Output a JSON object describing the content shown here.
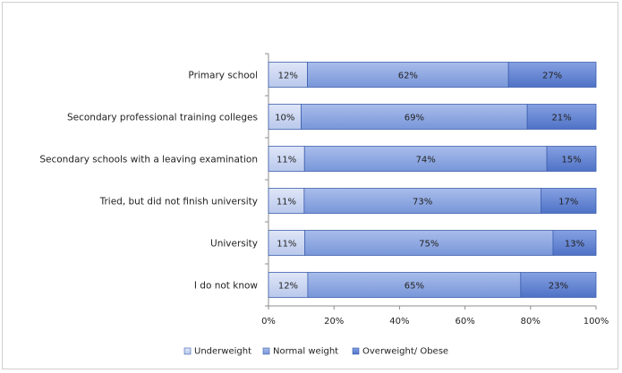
{
  "chart_data": {
    "type": "bar",
    "orientation": "horizontal",
    "stacked": true,
    "percent": true,
    "categories": [
      "Primary school",
      "Secondary professional training colleges",
      "Secondary schools with a leaving examination",
      "Tried, but did not finish university",
      "University",
      "I do not know"
    ],
    "series": [
      {
        "name": "Underweight",
        "values": [
          12,
          10,
          11,
          11,
          11,
          12
        ],
        "labels": [
          "12%",
          "10%",
          "11%",
          "11%",
          "11%",
          "12%"
        ],
        "color": "#c9d4ee"
      },
      {
        "name": "Normal weight",
        "values": [
          62,
          69,
          74,
          73,
          75,
          65
        ],
        "labels": [
          "62%",
          "69%",
          "74%",
          "73%",
          "75%",
          "65%"
        ],
        "color": "#8aa5df"
      },
      {
        "name": "Overweight/ Obese",
        "values": [
          27,
          21,
          15,
          17,
          13,
          23
        ],
        "labels": [
          "27%",
          "21%",
          "15%",
          "17%",
          "13%",
          "23%"
        ],
        "color": "#5f80cf"
      }
    ],
    "x_ticks": [
      "0%",
      "20%",
      "40%",
      "60%",
      "80%",
      "100%"
    ],
    "xlim": [
      0,
      100
    ],
    "grid": false,
    "legend_position": "bottom",
    "title": "",
    "xlabel": "",
    "ylabel": ""
  }
}
